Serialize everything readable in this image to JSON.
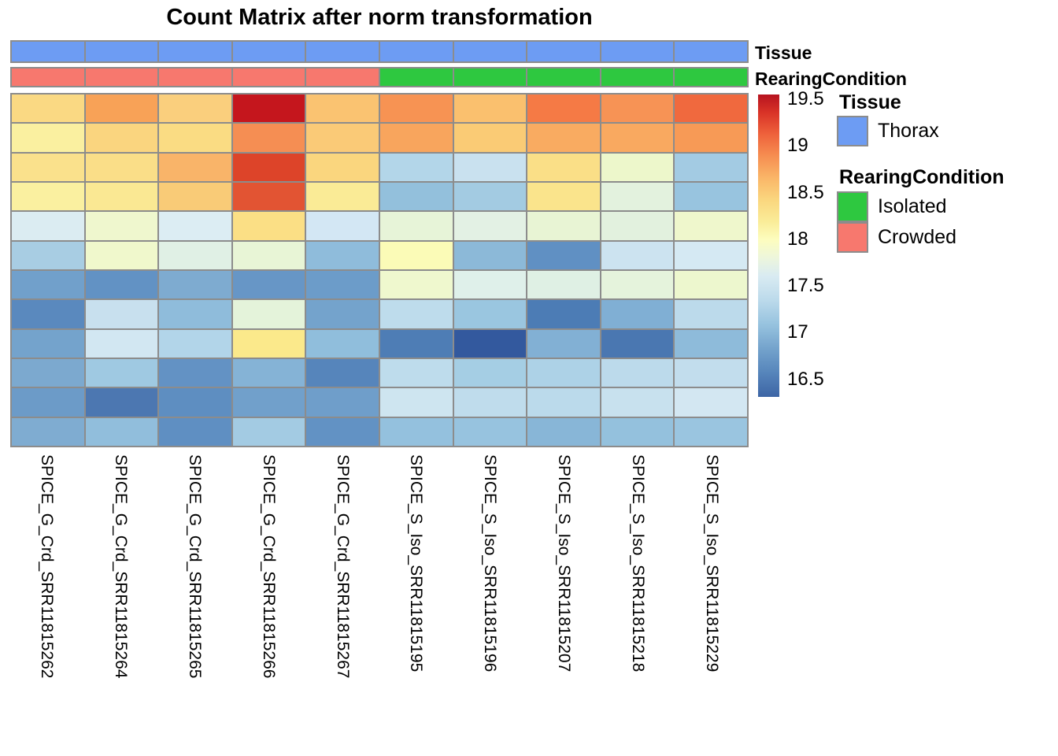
{
  "title": "Count Matrix after norm transformation",
  "chart_data": {
    "type": "heatmap",
    "title": "Count Matrix after norm transformation",
    "columns": [
      "SPICE_G_Crd_SRR11815262",
      "SPICE_G_Crd_SRR11815264",
      "SPICE_G_Crd_SRR11815265",
      "SPICE_G_Crd_SRR11815266",
      "SPICE_G_Crd_SRR11815267",
      "SPICE_S_Iso_SRR11815195",
      "SPICE_S_Iso_SRR11815196",
      "SPICE_S_Iso_SRR11815207",
      "SPICE_S_Iso_SRR11815218",
      "SPICE_S_Iso_SRR11815229"
    ],
    "n_rows": 12,
    "color_scale": {
      "min": 16.5,
      "max": 19.5,
      "palette": "RdYlBu reversed (red = high, blue = low)"
    },
    "values": [
      [
        18.4,
        18.85,
        18.45,
        19.5,
        18.55,
        18.95,
        18.5,
        19.05,
        18.95,
        19.1
      ],
      [
        18.1,
        18.4,
        18.35,
        18.95,
        18.5,
        18.8,
        18.5,
        18.7,
        18.7,
        18.8
      ],
      [
        18.3,
        18.35,
        18.65,
        19.25,
        18.4,
        17.15,
        17.4,
        18.3,
        17.8,
        17.2
      ],
      [
        18.1,
        18.2,
        18.5,
        19.2,
        18.15,
        17.0,
        17.2,
        18.3,
        17.7,
        17.05
      ],
      [
        17.6,
        17.8,
        17.6,
        18.35,
        17.6,
        17.75,
        17.7,
        17.75,
        17.7,
        17.8
      ],
      [
        17.2,
        17.8,
        17.7,
        17.75,
        17.0,
        17.9,
        17.0,
        16.6,
        17.4,
        17.5
      ],
      [
        16.8,
        16.65,
        16.9,
        16.7,
        16.75,
        17.8,
        17.7,
        17.7,
        17.75,
        17.8
      ],
      [
        16.55,
        17.45,
        17.0,
        17.75,
        16.8,
        17.35,
        17.1,
        16.4,
        16.9,
        17.35
      ],
      [
        16.8,
        17.55,
        17.25,
        18.35,
        17.0,
        16.4,
        16.2,
        16.9,
        16.4,
        17.0
      ],
      [
        16.85,
        17.1,
        16.65,
        16.95,
        16.5,
        17.35,
        17.2,
        17.25,
        17.35,
        17.4
      ],
      [
        16.75,
        16.4,
        16.6,
        16.8,
        16.8,
        17.5,
        17.35,
        17.35,
        17.45,
        17.55
      ],
      [
        16.9,
        17.0,
        16.6,
        17.2,
        16.65,
        17.05,
        17.05,
        16.95,
        17.05,
        17.1
      ]
    ],
    "cell_colors": [
      [
        "#FAD983",
        "#F8A257",
        "#FACF7D",
        "#C5161D",
        "#FAC371",
        "#F79353",
        "#FAC06E",
        "#F57A45",
        "#F79355",
        "#F0693E"
      ],
      [
        "#FAF0A0",
        "#FAD57F",
        "#FADC83",
        "#F58E53",
        "#FACA77",
        "#F8A55D",
        "#FACB75",
        "#F9AB61",
        "#F9A960",
        "#F79A56"
      ],
      [
        "#FAE18C",
        "#FADE88",
        "#F9B469",
        "#DD4429",
        "#FAD67E",
        "#B3D6E9",
        "#C9E1EF",
        "#FADF87",
        "#EDF7CB",
        "#A3CBE3"
      ],
      [
        "#FAF0A0",
        "#FAE893",
        "#F9CB77",
        "#E25433",
        "#FAEB96",
        "#93C0DC",
        "#A3CBE2",
        "#FAE48C",
        "#E3F2DE",
        "#98C4DF"
      ],
      [
        "#DBECF2",
        "#EFF7CE",
        "#DCEDF3",
        "#FBDF85",
        "#D3E7F4",
        "#E7F4D8",
        "#E3F1E4",
        "#E8F4D4",
        "#E2F1DE",
        "#EFF7CC"
      ],
      [
        "#A8CDE3",
        "#F0F8CC",
        "#E0F0E5",
        "#E8F5D6",
        "#8FBCDB",
        "#FBFBB7",
        "#8CB9D8",
        "#6090C3",
        "#CCE3F0",
        "#D5E9F3"
      ],
      [
        "#71A0CB",
        "#6292C4",
        "#7EABD0",
        "#6796C6",
        "#6C9CC9",
        "#EFF8CE",
        "#DFF0EA",
        "#DFF0E4",
        "#E5F3DC",
        "#EDF7CE"
      ],
      [
        "#5A89BE",
        "#C8E0EE",
        "#8FBCDB",
        "#E4F3DA",
        "#74A3CC",
        "#BEDCEC",
        "#9AC6E0",
        "#4C7CB5",
        "#80AFD4",
        "#BCDAEB"
      ],
      [
        "#74A3CC",
        "#D2E7F2",
        "#B2D5E9",
        "#FBE98B",
        "#90BEDC",
        "#4E7DB5",
        "#33599E",
        "#82B0D4",
        "#4A77B1",
        "#8EBBDA"
      ],
      [
        "#7CA9CF",
        "#9FC9E2",
        "#6392C4",
        "#85B3D6",
        "#5685BB",
        "#BEDCEC",
        "#A5CEE4",
        "#ADD2E7",
        "#BCDAEB",
        "#C2DDED"
      ],
      [
        "#6C9BC8",
        "#4C77B1",
        "#5E8EC1",
        "#71A0CB",
        "#6F9ECA",
        "#CEE5F0",
        "#BFDCEC",
        "#BBDAEB",
        "#C8E1EE",
        "#D3E7F2"
      ],
      [
        "#7FACD1",
        "#91BEDC",
        "#5F8FC2",
        "#A3CBE3",
        "#6292C4",
        "#94C1DE",
        "#97C3DF",
        "#88B6D7",
        "#94C1DD",
        "#9AC5E0"
      ]
    ]
  },
  "annotations": {
    "tissue": {
      "label": "Tissue",
      "per_column": [
        "Thorax",
        "Thorax",
        "Thorax",
        "Thorax",
        "Thorax",
        "Thorax",
        "Thorax",
        "Thorax",
        "Thorax",
        "Thorax"
      ]
    },
    "rearing": {
      "label": "RearingCondition",
      "per_column": [
        "Crowded",
        "Crowded",
        "Crowded",
        "Crowded",
        "Crowded",
        "Isolated",
        "Isolated",
        "Isolated",
        "Isolated",
        "Isolated"
      ]
    },
    "category_colors": {
      "Thorax": "#6D9CF3",
      "Isolated": "#2EC840",
      "Crowded": "#F7786E"
    }
  },
  "legend": {
    "colorbar": {
      "ticks": [
        "19.5",
        "19",
        "18.5",
        "18",
        "17.5",
        "17",
        "16.5"
      ],
      "gradient": [
        "#B6131F 0%",
        "#D93327 6%",
        "#EE613B 13%",
        "#F68C50 20%",
        "#FAB869 28%",
        "#FAD77F 35%",
        "#FAEC98 42%",
        "#FDFDBE 48%",
        "#EDF6DC 54%",
        "#D9EBF2 60%",
        "#BCDAEB 68%",
        "#97C3DF 76%",
        "#74A3CC 84%",
        "#5685BB 92%",
        "#3D65A5 100%"
      ]
    },
    "tissue": {
      "title": "Tissue",
      "items": [
        {
          "label": "Thorax",
          "color": "#6D9CF3"
        }
      ]
    },
    "rearing": {
      "title": "RearingCondition",
      "items": [
        {
          "label": "Isolated",
          "color": "#2EC840"
        },
        {
          "label": "Crowded",
          "color": "#F7786E"
        }
      ]
    }
  }
}
